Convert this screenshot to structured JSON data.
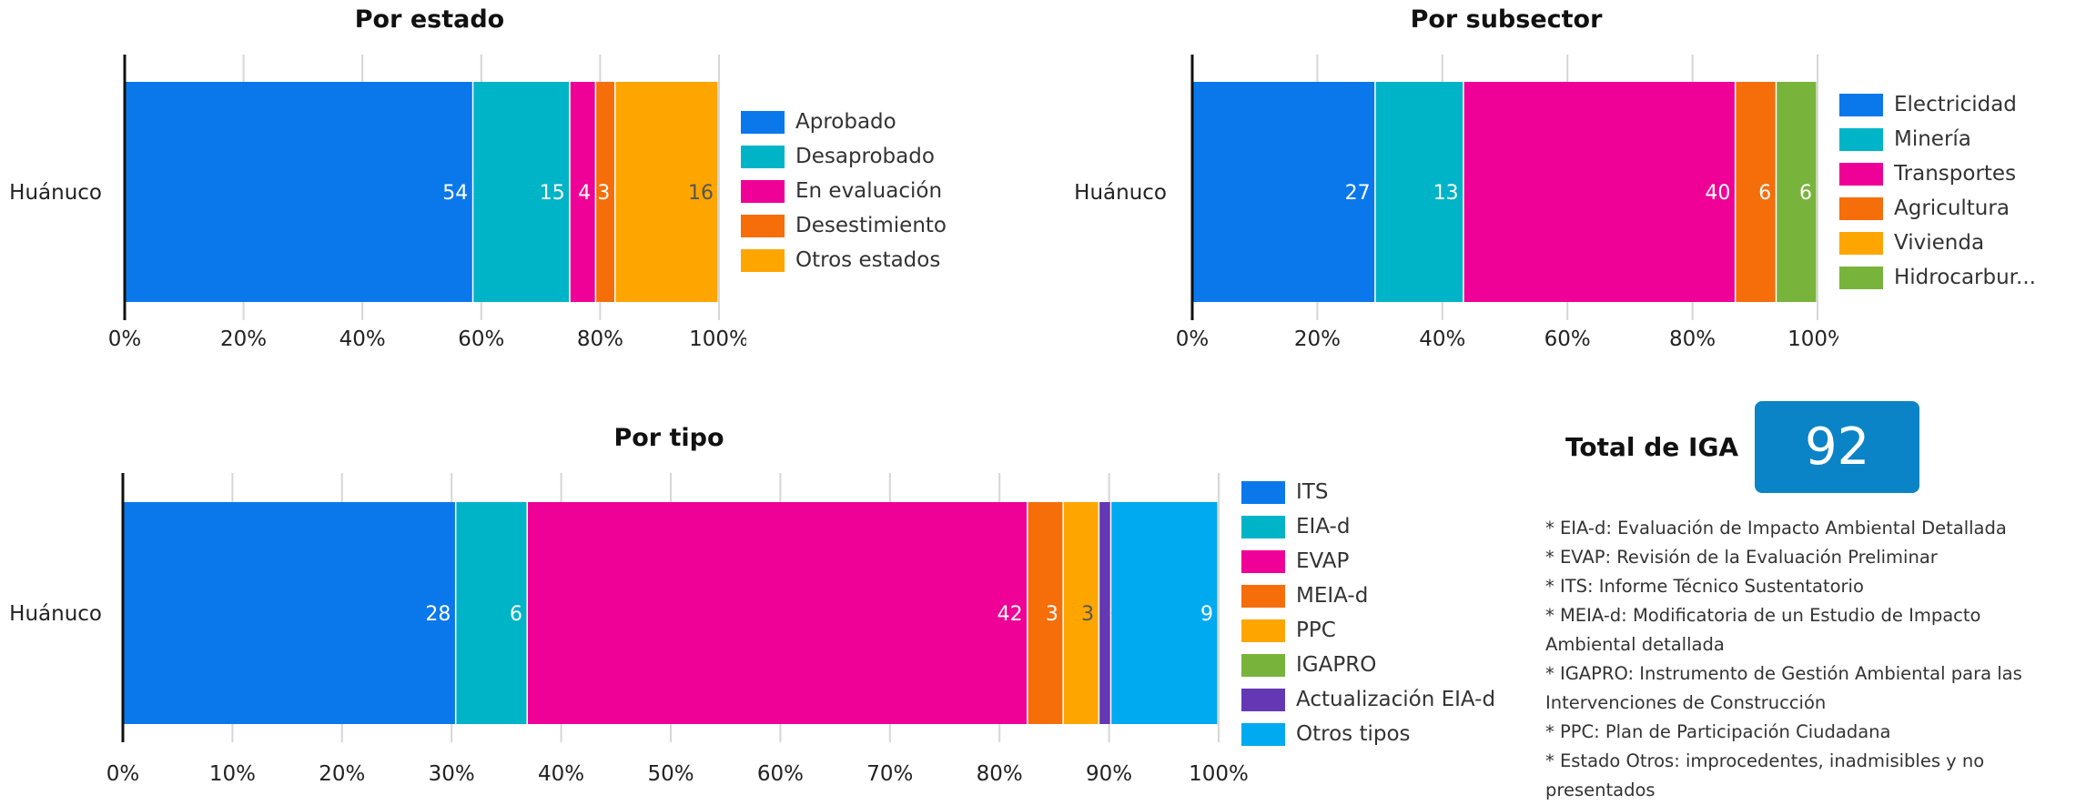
{
  "chart_data": [
    {
      "type": "bar",
      "orientation": "horizontal",
      "stacked": "percent",
      "title": "Por estado",
      "categories": [
        "Huánuco"
      ],
      "series": [
        {
          "name": "Aprobado",
          "values": [
            54
          ],
          "color": "#0a78eb"
        },
        {
          "name": "Desaprobado",
          "values": [
            15
          ],
          "color": "#00b4c8"
        },
        {
          "name": "En evaluación",
          "values": [
            4
          ],
          "color": "#ef0096"
        },
        {
          "name": "Desestimiento",
          "values": [
            3
          ],
          "color": "#f56e0a"
        },
        {
          "name": "Otros estados",
          "values": [
            16
          ],
          "color": "#ffa500"
        }
      ],
      "x_ticks": [
        "0%",
        "20%",
        "40%",
        "60%",
        "80%",
        "100%"
      ],
      "xlim": [
        0,
        100
      ],
      "grid": true,
      "legend": "right"
    },
    {
      "type": "bar",
      "orientation": "horizontal",
      "stacked": "percent",
      "title": "Por subsector",
      "categories": [
        "Huánuco"
      ],
      "series": [
        {
          "name": "Electricidad",
          "values": [
            27
          ],
          "color": "#0a78eb"
        },
        {
          "name": "Minería",
          "values": [
            13
          ],
          "color": "#00b4c8"
        },
        {
          "name": "Transportes",
          "values": [
            40
          ],
          "color": "#ef0096"
        },
        {
          "name": "Agricultura",
          "values": [
            6
          ],
          "color": "#f56e0a"
        },
        {
          "name": "Vivienda",
          "values": [
            0
          ],
          "color": "#ffa500"
        },
        {
          "name": "Hidrocarbur...",
          "values": [
            6
          ],
          "color": "#78b43c"
        }
      ],
      "x_ticks": [
        "0%",
        "20%",
        "40%",
        "60%",
        "80%",
        "100%"
      ],
      "xlim": [
        0,
        100
      ],
      "grid": true,
      "legend": "right"
    },
    {
      "type": "bar",
      "orientation": "horizontal",
      "stacked": "percent",
      "title": "Por tipo",
      "categories": [
        "Huánuco"
      ],
      "series": [
        {
          "name": "ITS",
          "values": [
            28
          ],
          "color": "#0a78eb"
        },
        {
          "name": "EIA-d",
          "values": [
            6
          ],
          "color": "#00b4c8"
        },
        {
          "name": "EVAP",
          "values": [
            42
          ],
          "color": "#ef0096"
        },
        {
          "name": "MEIA-d",
          "values": [
            3
          ],
          "color": "#f56e0a"
        },
        {
          "name": "PPC",
          "values": [
            3
          ],
          "color": "#ffa500"
        },
        {
          "name": "IGAPRO",
          "values": [
            0
          ],
          "color": "#78b43c"
        },
        {
          "name": "Actualización EIA-d",
          "values": [
            1
          ],
          "color": "#6438b4"
        },
        {
          "name": "Otros tipos",
          "values": [
            9
          ],
          "color": "#00aaf0"
        }
      ],
      "x_ticks": [
        "0%",
        "10%",
        "20%",
        "30%",
        "40%",
        "50%",
        "60%",
        "70%",
        "80%",
        "90%",
        "100%"
      ],
      "xlim": [
        0,
        100
      ],
      "grid": true,
      "legend": "right"
    }
  ],
  "total": {
    "label": "Total de IGA",
    "value": "92",
    "color": "#0a84c6"
  },
  "notes": [
    "* EIA-d: Evaluación de Impacto Ambiental Detallada",
    "* EVAP: Revisión de la Evaluación Preliminar",
    "* ITS: Informe Técnico Sustentatorio",
    "* MEIA-d: Modificatoria de un Estudio de Impacto Ambiental detallada",
    "* IGAPRO: Instrumento de Gestión Ambiental para las Intervenciones de Construcción",
    "* PPC: Plan de Participación Ciudadana",
    "* Estado Otros: improcedentes, inadmisibles y no presentados"
  ]
}
